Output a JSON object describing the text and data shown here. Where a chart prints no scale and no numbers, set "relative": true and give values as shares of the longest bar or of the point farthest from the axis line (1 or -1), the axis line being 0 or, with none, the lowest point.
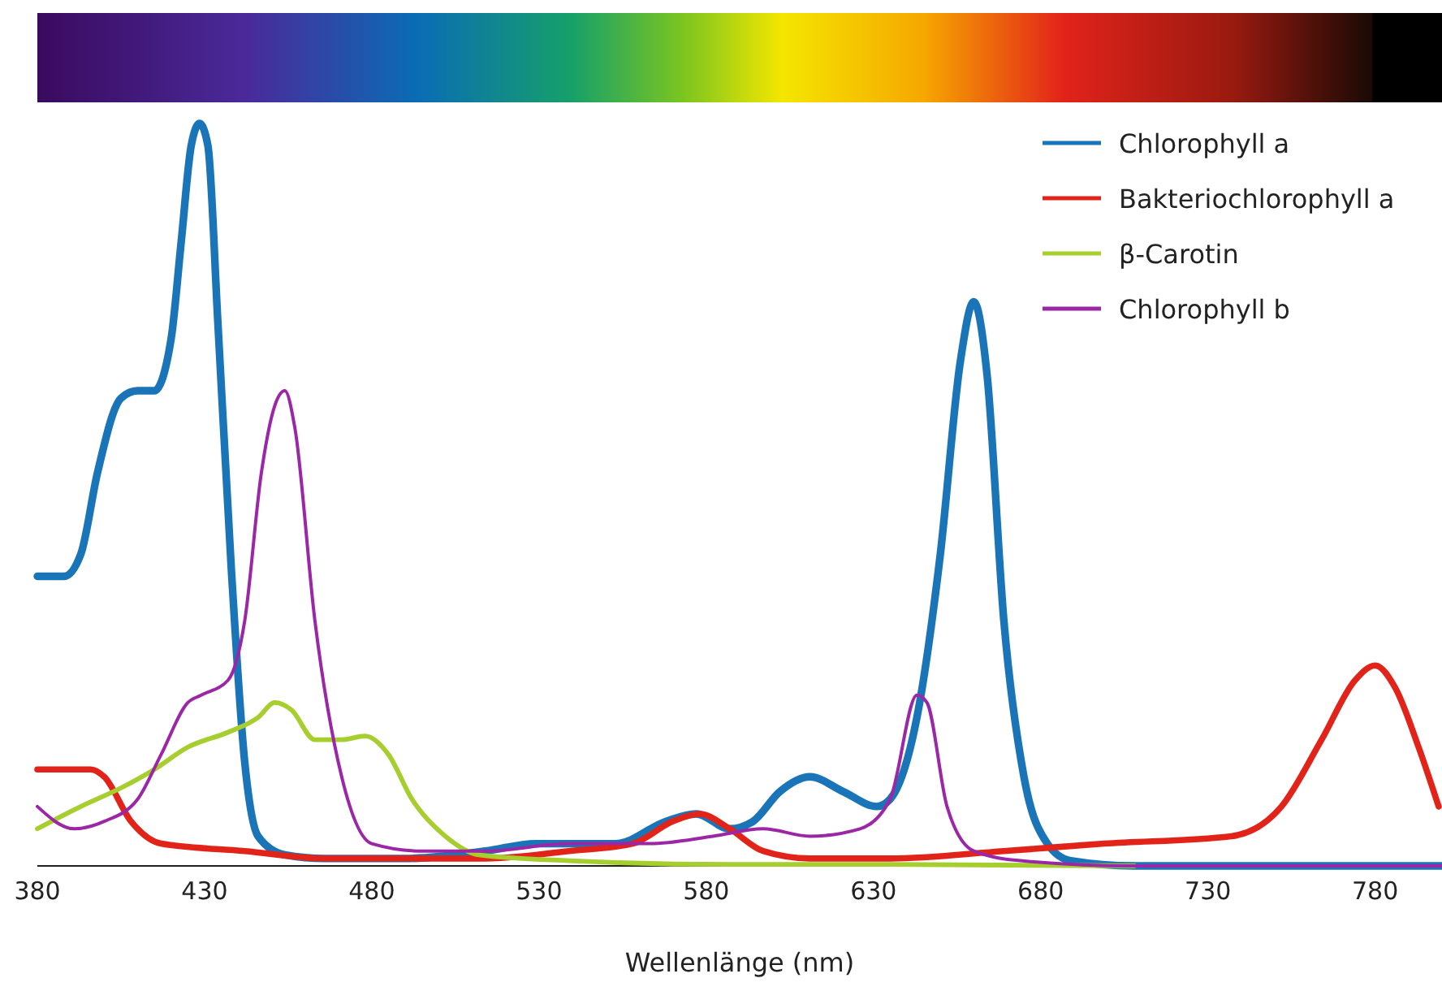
{
  "chart_data": {
    "type": "line",
    "relative": true,
    "xlabel": "Wellenlänge (nm)",
    "xlim": [
      380,
      800
    ],
    "xticks": [
      380,
      430,
      480,
      530,
      580,
      630,
      680,
      730,
      780
    ],
    "grid": false,
    "legend": "top right",
    "marker": "none",
    "line_style": "solid",
    "series": [
      {
        "name": "Chlorophyll a",
        "color": "#1a75b8",
        "x": [
          380,
          388,
          393,
          398,
          405,
          410,
          415,
          420,
          423,
          426,
          428.5,
          431,
          434,
          438,
          442,
          446,
          454,
          466,
          490,
          514,
          529,
          543,
          553,
          568,
          577,
          587,
          594,
          602,
          611,
          621,
          631,
          635,
          643,
          650,
          656,
          660,
          664,
          669,
          675,
          682,
          689,
          708,
          800
        ],
        "values": [
          0.39,
          0.39,
          0.42,
          0.53,
          0.63,
          0.64,
          0.64,
          0.71,
          0.84,
          0.97,
          1,
          0.97,
          0.73,
          0.4,
          0.14,
          0.04,
          0.015,
          0.01,
          0.01,
          0.02,
          0.03,
          0.03,
          0.03,
          0.06,
          0.07,
          0.05,
          0.06,
          0.1,
          0.12,
          0.1,
          0.08,
          0.09,
          0.2,
          0.42,
          0.68,
          0.76,
          0.66,
          0.33,
          0.12,
          0.03,
          0.007,
          0,
          0
        ]
      },
      {
        "name": "Bakteriochlorophyll a",
        "color": "#e2231a",
        "x": [
          380,
          391,
          396,
          400,
          408,
          417,
          442,
          466,
          514,
          539,
          558,
          570,
          578,
          587,
          597,
          611,
          635,
          669,
          699,
          737,
          752,
          764,
          774,
          780,
          786,
          793,
          799
        ],
        "values": [
          0.13,
          0.13,
          0.13,
          0.12,
          0.06,
          0.03,
          0.02,
          0.01,
          0.01,
          0.02,
          0.03,
          0.06,
          0.07,
          0.05,
          0.02,
          0.01,
          0.01,
          0.02,
          0.03,
          0.04,
          0.08,
          0.17,
          0.25,
          0.27,
          0.24,
          0.16,
          0.08
        ]
      },
      {
        "name": "β-Carotin",
        "color": "#a6ce2e",
        "x": [
          380,
          393,
          405,
          415,
          425,
          437,
          446,
          451,
          456,
          463,
          471,
          478,
          485,
          492,
          502,
          512,
          539,
          587,
          635,
          708
        ],
        "values": [
          0.05,
          0.08,
          0.105,
          0.13,
          0.16,
          0.18,
          0.2,
          0.22,
          0.21,
          0.17,
          0.17,
          0.175,
          0.15,
          0.09,
          0.04,
          0.015,
          0.007,
          0.002,
          0.002,
          0
        ]
      },
      {
        "name": "Chlorophyll b",
        "color": "#9b26a6",
        "x": [
          380,
          391,
          400,
          410,
          417,
          425,
          429,
          437,
          442,
          447,
          451,
          454,
          457,
          463,
          471,
          480,
          495,
          514,
          539,
          563,
          582,
          597,
          611,
          626,
          635,
          643,
          646,
          652,
          660,
          674,
          708,
          800
        ],
        "values": [
          0.08,
          0.05,
          0.06,
          0.09,
          0.15,
          0.22,
          0.23,
          0.25,
          0.33,
          0.53,
          0.62,
          0.64,
          0.59,
          0.33,
          0.12,
          0.03,
          0.02,
          0.02,
          0.03,
          0.03,
          0.04,
          0.05,
          0.04,
          0.05,
          0.09,
          0.23,
          0.22,
          0.08,
          0.02,
          0.007,
          0,
          0
        ]
      }
    ]
  }
}
